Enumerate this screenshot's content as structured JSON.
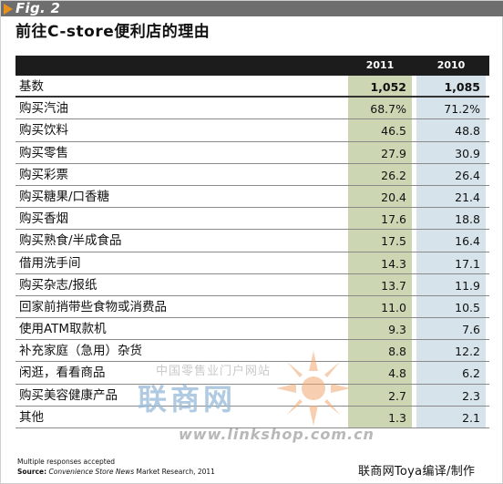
{
  "figure": {
    "label": "Fig. 2",
    "title": "前往C-store便利店的理由"
  },
  "table": {
    "columns": [
      "2011",
      "2010"
    ],
    "rows": [
      {
        "label": "基数",
        "v2011": "1,052",
        "v2010": "1,085"
      },
      {
        "label": "购买汽油",
        "v2011": "68.7%",
        "v2010": "71.2%"
      },
      {
        "label": "购买饮料",
        "v2011": "46.5",
        "v2010": "48.8"
      },
      {
        "label": "购买零售",
        "v2011": "27.9",
        "v2010": "30.9"
      },
      {
        "label": "购买彩票",
        "v2011": "26.2",
        "v2010": "26.4"
      },
      {
        "label": "购买糖果/口香糖",
        "v2011": "20.4",
        "v2010": "21.4"
      },
      {
        "label": "购买香烟",
        "v2011": "17.6",
        "v2010": "18.8"
      },
      {
        "label": "购买熟食/半成食品",
        "v2011": "17.5",
        "v2010": "16.4"
      },
      {
        "label": "借用洗手间",
        "v2011": "14.3",
        "v2010": "17.1"
      },
      {
        "label": "购买杂志/报纸",
        "v2011": "13.7",
        "v2010": "11.9"
      },
      {
        "label": "回家前捎带些食物或消费品",
        "v2011": "11.0",
        "v2010": "10.5"
      },
      {
        "label": "使用ATM取款机",
        "v2011": "9.3",
        "v2010": "7.6"
      },
      {
        "label": "补充家庭（急用）杂货",
        "v2011": "8.8",
        "v2010": "12.2"
      },
      {
        "label": "闲逛，看看商品",
        "v2011": "4.8",
        "v2010": "6.2"
      },
      {
        "label": "购买美容健康产品",
        "v2011": "2.7",
        "v2010": "2.3"
      },
      {
        "label": "其他",
        "v2011": "1.3",
        "v2010": "2.1"
      }
    ]
  },
  "footnote": {
    "line1": "Multiple responses accepted",
    "source_label": "Source:",
    "source_italic": "Convenience Store News",
    "source_rest": "Market Research, 2011"
  },
  "credit": "联商网Toya编译/制作",
  "watermark": {
    "small": "中国零售业门户网站",
    "big": "联商网",
    "url": "www.linkshop.com.cn"
  },
  "colors": {
    "col2011_bg": "#cdd6b2",
    "col2010_bg": "#d6e3ea",
    "header_bg": "#1c1c1c",
    "fig_bar": "#6e6e6e",
    "accent": "#e8901a"
  }
}
